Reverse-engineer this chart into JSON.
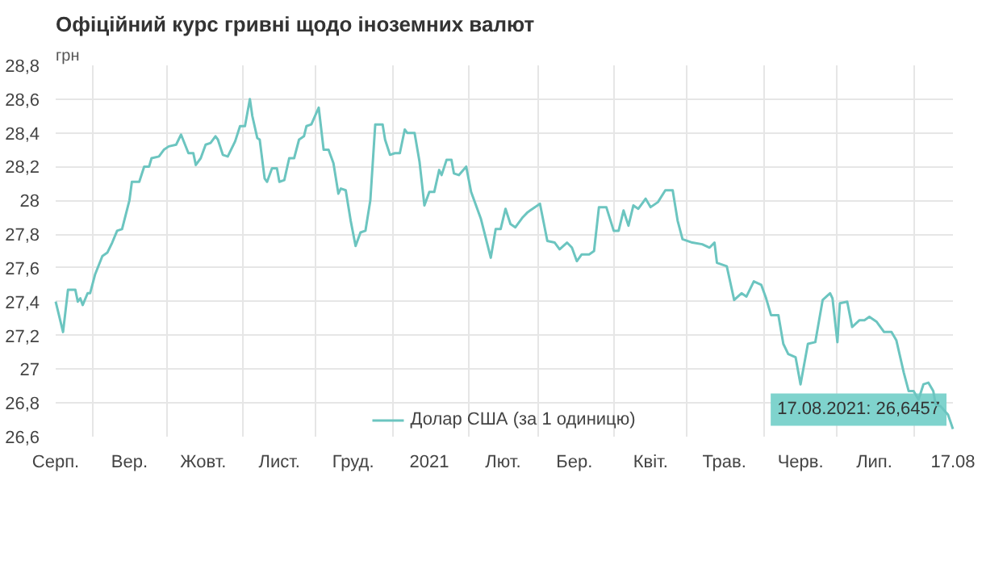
{
  "chart_data": {
    "type": "line",
    "title": "Офіційний курс гривні щодо іноземних валют",
    "ylabel": "грн",
    "x": [
      "2020-08-17",
      "2020-08-20",
      "2020-08-22",
      "2020-08-25",
      "2020-08-26",
      "2020-08-27",
      "2020-08-28",
      "2020-08-30",
      "2020-08-31",
      "2020-09-02",
      "2020-09-05",
      "2020-09-07",
      "2020-09-09",
      "2020-09-11",
      "2020-09-13",
      "2020-09-16",
      "2020-09-17",
      "2020-09-20",
      "2020-09-22",
      "2020-09-24",
      "2020-09-25",
      "2020-09-28",
      "2020-09-30",
      "2020-10-02",
      "2020-10-05",
      "2020-10-07",
      "2020-10-10",
      "2020-10-12",
      "2020-10-13",
      "2020-10-15",
      "2020-10-17",
      "2020-10-19",
      "2020-10-21",
      "2020-10-22",
      "2020-10-24",
      "2020-10-26",
      "2020-10-29",
      "2020-10-31",
      "2020-11-02",
      "2020-11-04",
      "2020-11-05",
      "2020-11-07",
      "2020-11-08",
      "2020-11-10",
      "2020-11-11",
      "2020-11-13",
      "2020-11-15",
      "2020-11-16",
      "2020-11-18",
      "2020-11-20",
      "2020-11-22",
      "2020-11-24",
      "2020-11-26",
      "2020-11-27",
      "2020-11-29",
      "2020-12-02",
      "2020-12-04",
      "2020-12-06",
      "2020-12-08",
      "2020-12-10",
      "2020-12-11",
      "2020-12-13",
      "2020-12-15",
      "2020-12-17",
      "2020-12-19",
      "2020-12-21",
      "2020-12-23",
      "2020-12-25",
      "2020-12-28",
      "2020-12-29",
      "2020-12-31",
      "2021-01-02",
      "2021-01-04",
      "2021-01-06",
      "2021-01-07",
      "2021-01-10",
      "2021-01-12",
      "2021-01-14",
      "2021-01-16",
      "2021-01-18",
      "2021-01-20",
      "2021-01-21",
      "2021-01-23",
      "2021-01-25",
      "2021-01-26",
      "2021-01-28",
      "2021-01-31",
      "2021-02-02",
      "2021-02-06",
      "2021-02-10",
      "2021-02-12",
      "2021-02-14",
      "2021-02-16",
      "2021-02-18",
      "2021-02-20",
      "2021-02-23",
      "2021-02-25",
      "2021-02-26",
      "2021-03-02",
      "2021-03-05",
      "2021-03-08",
      "2021-03-10",
      "2021-03-13",
      "2021-03-15",
      "2021-03-17",
      "2021-03-19",
      "2021-03-22",
      "2021-03-24",
      "2021-03-26",
      "2021-03-29",
      "2021-04-01",
      "2021-04-03",
      "2021-04-05",
      "2021-04-07",
      "2021-04-09",
      "2021-04-11",
      "2021-04-14",
      "2021-04-16",
      "2021-04-19",
      "2021-04-22",
      "2021-04-25",
      "2021-04-27",
      "2021-04-29",
      "2021-05-03",
      "2021-05-07",
      "2021-05-10",
      "2021-05-12",
      "2021-05-13",
      "2021-05-17",
      "2021-05-20",
      "2021-05-23",
      "2021-05-25",
      "2021-05-28",
      "2021-05-31",
      "2021-06-02",
      "2021-06-04",
      "2021-06-07",
      "2021-06-09",
      "2021-06-11",
      "2021-06-14",
      "2021-06-16",
      "2021-06-19",
      "2021-06-22",
      "2021-06-25",
      "2021-06-28",
      "2021-06-29",
      "2021-07-01",
      "2021-07-02",
      "2021-07-05",
      "2021-07-07",
      "2021-07-10",
      "2021-07-12",
      "2021-07-14",
      "2021-07-17",
      "2021-07-20",
      "2021-07-23",
      "2021-07-25",
      "2021-07-28",
      "2021-07-30",
      "2021-08-01",
      "2021-08-03",
      "2021-08-05",
      "2021-08-07",
      "2021-08-09",
      "2021-08-10",
      "2021-08-12",
      "2021-08-15",
      "2021-08-17"
    ],
    "series": [
      {
        "name": "Долар США (за 1 одиницю)",
        "color": "#6cc5c0",
        "values": [
          27.4,
          27.22,
          27.47,
          27.47,
          27.4,
          27.42,
          27.38,
          27.45,
          27.45,
          27.56,
          27.67,
          27.69,
          27.75,
          27.82,
          27.83,
          28.0,
          28.11,
          28.11,
          28.2,
          28.2,
          28.25,
          28.26,
          28.3,
          28.32,
          28.33,
          28.39,
          28.28,
          28.28,
          28.21,
          28.25,
          28.33,
          28.34,
          28.38,
          28.36,
          28.27,
          28.26,
          28.35,
          28.44,
          28.44,
          28.6,
          28.5,
          28.37,
          28.36,
          28.13,
          28.11,
          28.19,
          28.19,
          28.11,
          28.12,
          28.25,
          28.25,
          28.36,
          28.38,
          28.44,
          28.45,
          28.55,
          28.3,
          28.3,
          28.22,
          28.04,
          28.07,
          28.06,
          27.88,
          27.73,
          27.81,
          27.82,
          28.0,
          28.45,
          28.45,
          28.36,
          28.27,
          28.28,
          28.28,
          28.42,
          28.4,
          28.4,
          28.23,
          27.97,
          28.05,
          28.05,
          28.18,
          28.15,
          28.24,
          28.24,
          28.16,
          28.15,
          28.2,
          28.05,
          27.89,
          27.66,
          27.83,
          27.83,
          27.95,
          27.86,
          27.84,
          27.9,
          27.93,
          27.94,
          27.98,
          27.76,
          27.75,
          27.71,
          27.75,
          27.72,
          27.64,
          27.68,
          27.68,
          27.7,
          27.96,
          27.96,
          27.82,
          27.82,
          27.94,
          27.85,
          27.97,
          27.95,
          28.01,
          27.96,
          27.99,
          28.06,
          28.06,
          27.88,
          27.77,
          27.75,
          27.74,
          27.72,
          27.75,
          27.63,
          27.61,
          27.41,
          27.45,
          27.43,
          27.52,
          27.5,
          27.42,
          27.32,
          27.32,
          27.15,
          27.09,
          27.07,
          26.91,
          27.15,
          27.16,
          27.41,
          27.45,
          27.42,
          27.16,
          27.39,
          27.4,
          27.25,
          27.29,
          27.29,
          27.31,
          27.28,
          27.22,
          27.22,
          27.17,
          26.98,
          26.87,
          26.87,
          26.82,
          26.91,
          26.92,
          26.87,
          26.79,
          26.78,
          26.73,
          26.6457
        ]
      }
    ],
    "xlim": [
      "2020-08-17",
      "2021-08-17"
    ],
    "xticks": [
      {
        "value": "2020-08-17",
        "label": "Серп."
      },
      {
        "value": "2020-09-01",
        "label": null
      },
      {
        "value": "2020-09-16",
        "label": "Вер."
      },
      {
        "value": "2020-10-01",
        "label": null
      },
      {
        "value": "2020-10-16",
        "label": "Жовт."
      },
      {
        "value": "2020-11-01",
        "label": null
      },
      {
        "value": "2020-11-16",
        "label": "Лист."
      },
      {
        "value": "2020-12-01",
        "label": null
      },
      {
        "value": "2020-12-16",
        "label": "Груд."
      },
      {
        "value": "2021-01-01",
        "label": null
      },
      {
        "value": "2021-01-16",
        "label": "2021"
      },
      {
        "value": "2021-02-01",
        "label": null
      },
      {
        "value": "2021-02-15",
        "label": "Лют."
      },
      {
        "value": "2021-03-01",
        "label": null
      },
      {
        "value": "2021-03-16",
        "label": "Бер."
      },
      {
        "value": "2021-04-01",
        "label": null
      },
      {
        "value": "2021-04-16",
        "label": "Квіт."
      },
      {
        "value": "2021-05-01",
        "label": null
      },
      {
        "value": "2021-05-16",
        "label": "Трав."
      },
      {
        "value": "2021-06-01",
        "label": null
      },
      {
        "value": "2021-06-16",
        "label": "Черв."
      },
      {
        "value": "2021-07-01",
        "label": null
      },
      {
        "value": "2021-07-16",
        "label": "Лип."
      },
      {
        "value": "2021-08-01",
        "label": null
      },
      {
        "value": "2021-08-17",
        "label": "17.08"
      }
    ],
    "ylim": [
      26.6,
      28.8
    ],
    "yticks": [
      {
        "value": 26.6,
        "label": "26,6"
      },
      {
        "value": 26.8,
        "label": "26,8"
      },
      27,
      {
        "value": 27.2,
        "label": "27,2"
      },
      {
        "value": 27.4,
        "label": "27,4"
      },
      {
        "value": 27.6,
        "label": "27,6"
      },
      {
        "value": 27.8,
        "label": "27,8"
      },
      28,
      {
        "value": 28.2,
        "label": "28,2"
      },
      {
        "value": 28.4,
        "label": "28,4"
      },
      {
        "value": 28.6,
        "label": "28,6"
      },
      {
        "value": 28.8,
        "label": "28,8"
      }
    ],
    "grid": true,
    "legend": "bottom",
    "marker": "none",
    "line_style": "solid",
    "annotations": [
      {
        "text": "17.08.2021: 26,6457",
        "x": "2021-08-17",
        "y": 26.6457
      }
    ]
  }
}
